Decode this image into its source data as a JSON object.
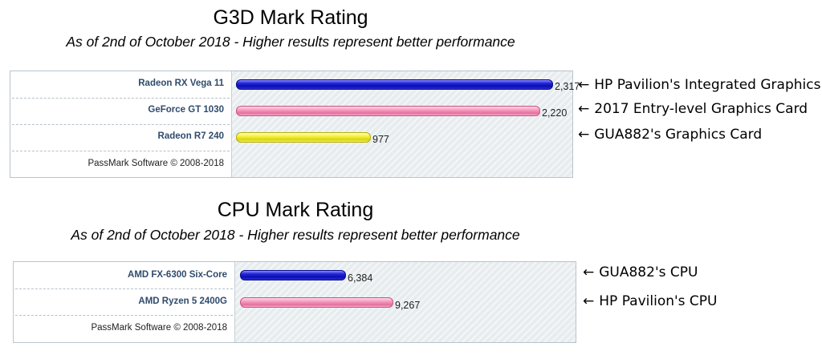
{
  "chart_data": [
    {
      "type": "bar",
      "orientation": "horizontal",
      "title": "G3D Mark Rating",
      "subtitle": "As of 2nd of October 2018 - Higher results represent better performance",
      "categories": [
        "Radeon RX Vega 11",
        "GeForce GT 1030",
        "Radeon R7 240"
      ],
      "values": [
        2317,
        2220,
        977
      ],
      "value_labels": [
        "2,317",
        "2,220",
        "977"
      ],
      "bar_colors": [
        "#1a1ec8",
        "#ee86b1",
        "#eee82a"
      ],
      "footer": "PassMark Software © 2008-2018",
      "annotations": [
        "HP Pavilion's Integrated Graphics",
        "2017 Entry-level Graphics Card",
        "GUA882's Graphics Card"
      ],
      "xlim": [
        0,
        2500
      ]
    },
    {
      "type": "bar",
      "orientation": "horizontal",
      "title": "CPU Mark Rating",
      "subtitle": "As of 2nd of October 2018 - Higher results represent better performance",
      "categories": [
        "AMD FX-6300 Six-Core",
        "AMD Ryzen 5 2400G"
      ],
      "values": [
        6384,
        9267
      ],
      "value_labels": [
        "6,384",
        "9,267"
      ],
      "bar_colors": [
        "#1a1ec8",
        "#ee86b1"
      ],
      "footer": "PassMark Software © 2008-2018",
      "annotations": [
        "GUA882's CPU",
        "HP Pavilion's CPU"
      ],
      "xlim": [
        0,
        20500
      ]
    }
  ],
  "arrow_glyph": "←"
}
